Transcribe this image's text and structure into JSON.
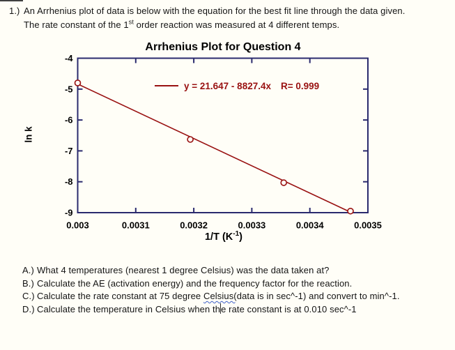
{
  "intro": {
    "number": "1.)",
    "line1": "An Arrhenius plot of data is below with the equation for the best fit line through the data given.",
    "line2_pre": "The rate constant of the 1",
    "line2_sup": "st",
    "line2_post": " order reaction was measured at 4 different temps."
  },
  "chart_data": {
    "type": "scatter",
    "title": "Arrhenius Plot for Question 4",
    "ylabel": "ln k",
    "xlabel_pre": "1/T (K",
    "xlabel_sup": "-1",
    "xlabel_post": ")",
    "xlim": [
      0.003,
      0.0035
    ],
    "ylim": [
      -9,
      -4
    ],
    "xticks": [
      0.003,
      0.0031,
      0.0032,
      0.0033,
      0.0034,
      0.0035
    ],
    "xtick_labels": [
      "0.003",
      "0.0031",
      "0.0032",
      "0.0033",
      "0.0034",
      "0.0035"
    ],
    "yticks": [
      -4,
      -5,
      -6,
      -7,
      -8,
      -9
    ],
    "ytick_labels": [
      "-4",
      "-5",
      "-6",
      "-7",
      "-8",
      "-9"
    ],
    "points": [
      {
        "x": 0.003,
        "y": -4.8
      },
      {
        "x": 0.003194,
        "y": -6.63
      },
      {
        "x": 0.003355,
        "y": -8.03
      },
      {
        "x": 0.00347,
        "y": -8.95
      }
    ],
    "fit_line": {
      "intercept": 21.647,
      "slope": -8827.4,
      "x_start": 0.003,
      "y_end": -9
    },
    "legend": {
      "equation": "y = 21.647 - 8827.4x",
      "r_value": "R= 0.999"
    },
    "grid": false,
    "legend_position": "inside-top",
    "colors": {
      "series": "#991111",
      "axis": "#2a2a6e",
      "text": "#000000",
      "background": "#fffef7"
    }
  },
  "questions": {
    "a": {
      "label": "A.)",
      "text": "What 4 temperatures (nearest 1 degree Celsius) was the data taken at?"
    },
    "b": {
      "label": "B.)",
      "text": "Calculate the AE (activation energy) and the frequency factor for the reaction."
    },
    "c": {
      "label": "C.)",
      "pre": "Calculate the rate constant at 75 degree ",
      "underlined": "Celsius(",
      "post": "data is in sec^-1) and convert to min^-1."
    },
    "d": {
      "label": "D.)",
      "pre": "Calculate the temperature in Celsius when th",
      "post": "e rate constant is at 0.010 sec^-1"
    }
  }
}
